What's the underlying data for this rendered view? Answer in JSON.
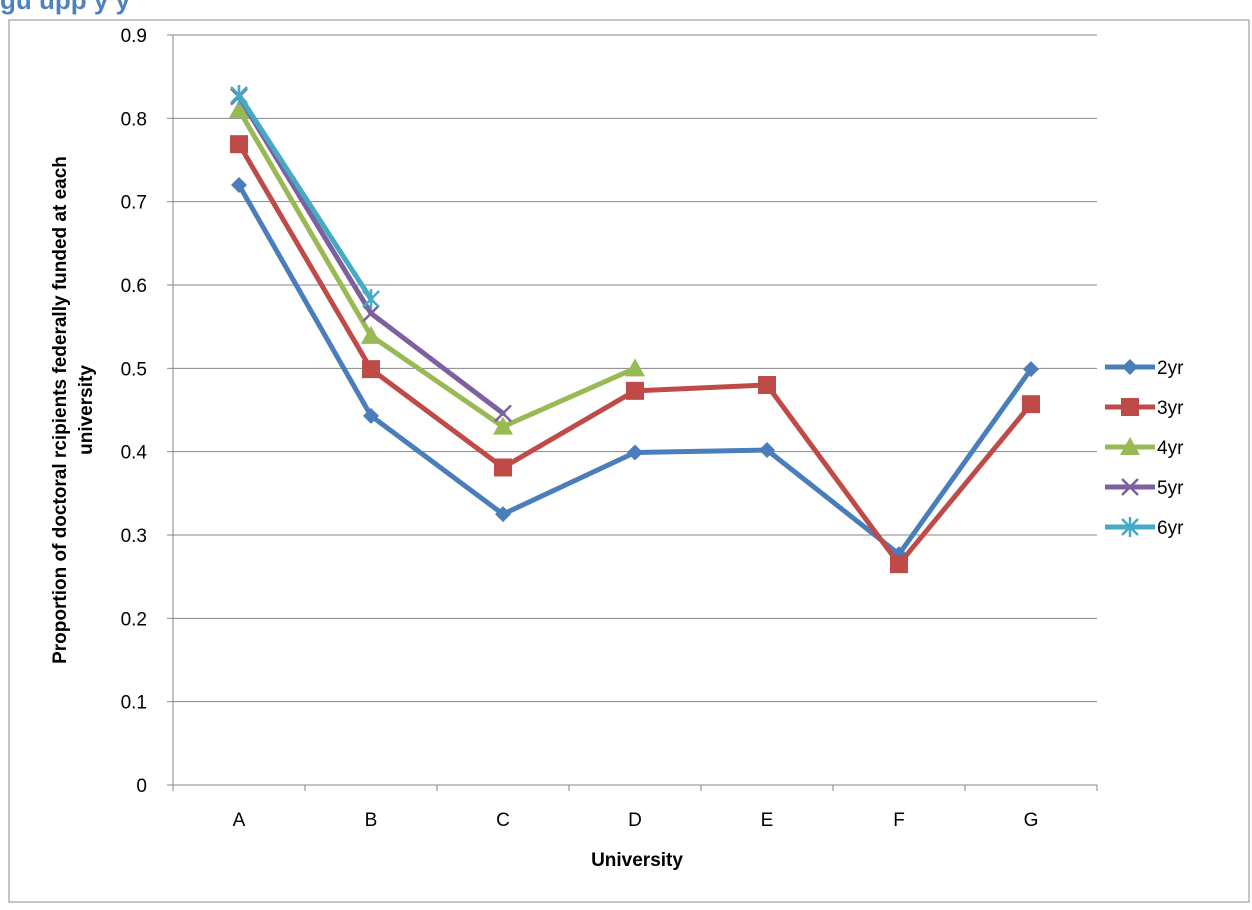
{
  "heading_fragment": "gu        upp                                                    y y",
  "chart_data": {
    "type": "line",
    "categories": [
      "A",
      "B",
      "C",
      "D",
      "E",
      "F",
      "G"
    ],
    "xlabel": "University",
    "ylabel": "Proportion of doctoral rcipients federally funded at each university",
    "ylim": [
      0,
      0.9
    ],
    "yticks": [
      "0",
      "0.1",
      "0.2",
      "0.3",
      "0.4",
      "0.5",
      "0.6",
      "0.7",
      "0.8",
      "0.9"
    ],
    "grid": true,
    "legend_position": "right",
    "series": [
      {
        "name": "2yr",
        "color": "#4a7ebb",
        "marker": "diamond",
        "values": [
          0.72,
          0.443,
          0.325,
          0.399,
          0.402,
          0.277,
          0.499
        ]
      },
      {
        "name": "3yr",
        "color": "#be4b48",
        "marker": "square",
        "values": [
          0.769,
          0.499,
          0.381,
          0.473,
          0.48,
          0.265,
          0.457
        ]
      },
      {
        "name": "4yr",
        "color": "#98b954",
        "marker": "triangle",
        "values": [
          0.81,
          0.539,
          0.43,
          0.5,
          null,
          null,
          null
        ]
      },
      {
        "name": "5yr",
        "color": "#7d60a0",
        "marker": "x",
        "values": [
          0.826,
          0.566,
          0.446,
          null,
          null,
          null,
          null
        ]
      },
      {
        "name": "6yr",
        "color": "#46aac5",
        "marker": "asterisk",
        "values": [
          0.828,
          0.583,
          null,
          null,
          null,
          null,
          null
        ]
      }
    ]
  }
}
